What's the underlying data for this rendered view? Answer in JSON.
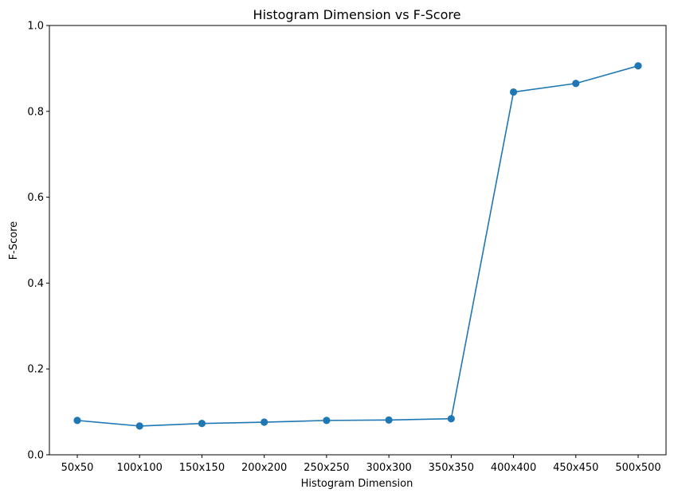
{
  "chart_data": {
    "type": "line",
    "title": "Histogram Dimension vs F-Score",
    "xlabel": "Histogram Dimension",
    "ylabel": "F-Score",
    "categories": [
      "50x50",
      "100x100",
      "150x150",
      "200x200",
      "250x250",
      "300x300",
      "350x350",
      "400x400",
      "450x450",
      "500x500"
    ],
    "series": [
      {
        "values": [
          0.08,
          0.067,
          0.073,
          0.076,
          0.08,
          0.081,
          0.084,
          0.845,
          0.865,
          0.906
        ],
        "color": "#1f77b4",
        "marker": "circle"
      }
    ],
    "ylim": [
      0.0,
      1.0
    ],
    "yticks": [
      0.0,
      0.2,
      0.4,
      0.6,
      0.8,
      1.0
    ],
    "ytick_labels": [
      "0.0",
      "0.2",
      "0.4",
      "0.6",
      "0.8",
      "1.0"
    ],
    "grid": false,
    "legend": "none"
  }
}
